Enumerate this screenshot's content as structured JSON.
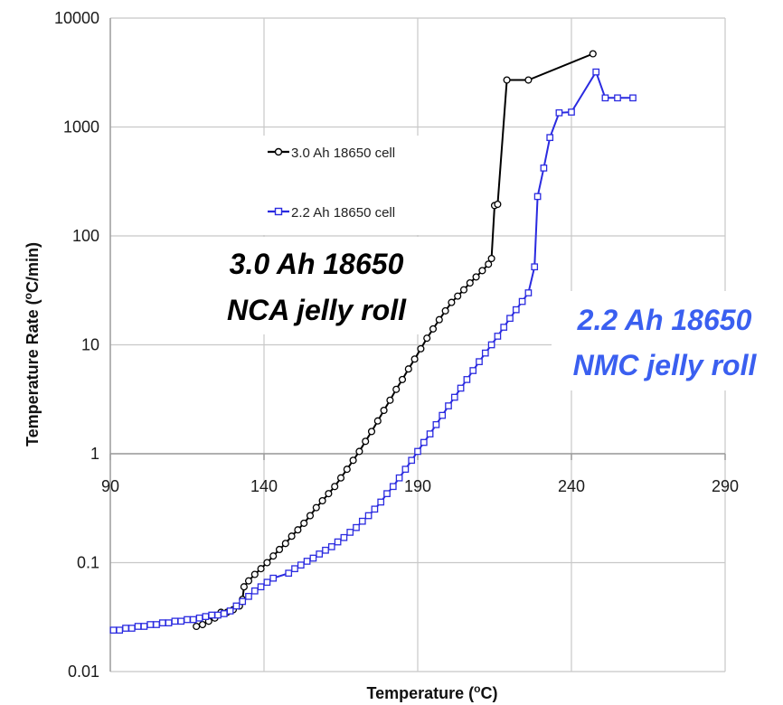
{
  "chart_data": {
    "type": "scatter",
    "xlabel": "Temperature (",
    "xlabel_sup": "o",
    "xlabel_end": "C)",
    "ylabel": "Temperature Rate (",
    "ylabel_sup": "o",
    "ylabel_end": "C/min)",
    "y_scale": "log",
    "xlim": [
      90,
      290
    ],
    "ylim": [
      0.01,
      10000
    ],
    "x_ticks": [
      "90",
      "140",
      "190",
      "240",
      "290"
    ],
    "y_ticks": [
      "0.01",
      "0.1",
      "1",
      "10",
      "100",
      "1000",
      "10000"
    ],
    "grid": true,
    "legend_placement": "upper-left-center",
    "series": [
      {
        "name": "3.0 Ah 18650 cell",
        "color": "#000000",
        "marker": "circle",
        "points": [
          [
            118,
            0.026
          ],
          [
            120,
            0.027
          ],
          [
            122,
            0.029
          ],
          [
            124,
            0.031
          ],
          [
            126,
            0.035
          ],
          [
            128,
            0.035
          ],
          [
            130,
            0.037
          ],
          [
            132,
            0.04
          ],
          [
            133,
            0.046
          ],
          [
            133.5,
            0.06
          ],
          [
            135,
            0.068
          ],
          [
            137,
            0.078
          ],
          [
            139,
            0.088
          ],
          [
            141,
            0.1
          ],
          [
            143,
            0.115
          ],
          [
            145,
            0.132
          ],
          [
            147,
            0.15
          ],
          [
            149,
            0.175
          ],
          [
            151,
            0.2
          ],
          [
            153,
            0.23
          ],
          [
            155,
            0.27
          ],
          [
            157,
            0.32
          ],
          [
            159,
            0.37
          ],
          [
            161,
            0.43
          ],
          [
            163,
            0.5
          ],
          [
            165,
            0.6
          ],
          [
            167,
            0.72
          ],
          [
            169,
            0.87
          ],
          [
            171,
            1.05
          ],
          [
            173,
            1.3
          ],
          [
            175,
            1.6
          ],
          [
            177,
            2.0
          ],
          [
            179,
            2.5
          ],
          [
            181,
            3.1
          ],
          [
            183,
            3.9
          ],
          [
            185,
            4.8
          ],
          [
            187,
            6.0
          ],
          [
            189,
            7.4
          ],
          [
            191,
            9.2
          ],
          [
            193,
            11.5
          ],
          [
            195,
            14.0
          ],
          [
            197,
            17.0
          ],
          [
            199,
            20.5
          ],
          [
            201,
            24.5
          ],
          [
            203,
            28.0
          ],
          [
            205,
            32.0
          ],
          [
            207,
            37.0
          ],
          [
            209,
            42.0
          ],
          [
            211,
            48.0
          ],
          [
            213,
            55.0
          ],
          [
            214,
            62.0
          ],
          [
            215,
            190
          ],
          [
            216,
            195
          ],
          [
            219,
            2700
          ],
          [
            226,
            2700
          ],
          [
            247,
            4700
          ]
        ]
      },
      {
        "name": "2.2 Ah 18650 cell",
        "color": "#2a2ae0",
        "marker": "square",
        "points": [
          [
            91,
            0.024
          ],
          [
            93,
            0.024
          ],
          [
            95,
            0.025
          ],
          [
            97,
            0.025
          ],
          [
            99,
            0.026
          ],
          [
            101,
            0.026
          ],
          [
            103,
            0.027
          ],
          [
            105,
            0.027
          ],
          [
            107,
            0.028
          ],
          [
            109,
            0.028
          ],
          [
            111,
            0.029
          ],
          [
            113,
            0.029
          ],
          [
            115,
            0.03
          ],
          [
            117,
            0.03
          ],
          [
            119,
            0.031
          ],
          [
            121,
            0.032
          ],
          [
            123,
            0.033
          ],
          [
            125,
            0.033
          ],
          [
            127,
            0.034
          ],
          [
            129,
            0.036
          ],
          [
            131,
            0.04
          ],
          [
            133,
            0.044
          ],
          [
            135,
            0.049
          ],
          [
            137,
            0.055
          ],
          [
            139,
            0.06
          ],
          [
            141,
            0.066
          ],
          [
            143,
            0.072
          ],
          [
            148,
            0.08
          ],
          [
            150,
            0.088
          ],
          [
            152,
            0.095
          ],
          [
            154,
            0.103
          ],
          [
            156,
            0.11
          ],
          [
            158,
            0.12
          ],
          [
            160,
            0.13
          ],
          [
            162,
            0.14
          ],
          [
            164,
            0.155
          ],
          [
            166,
            0.17
          ],
          [
            168,
            0.19
          ],
          [
            170,
            0.21
          ],
          [
            172,
            0.24
          ],
          [
            174,
            0.27
          ],
          [
            176,
            0.31
          ],
          [
            178,
            0.36
          ],
          [
            180,
            0.43
          ],
          [
            182,
            0.5
          ],
          [
            184,
            0.6
          ],
          [
            186,
            0.72
          ],
          [
            188,
            0.87
          ],
          [
            190,
            1.05
          ],
          [
            192,
            1.27
          ],
          [
            194,
            1.52
          ],
          [
            196,
            1.85
          ],
          [
            198,
            2.25
          ],
          [
            200,
            2.75
          ],
          [
            202,
            3.3
          ],
          [
            204,
            4.0
          ],
          [
            206,
            4.8
          ],
          [
            208,
            5.8
          ],
          [
            210,
            7.0
          ],
          [
            212,
            8.4
          ],
          [
            214,
            10.0
          ],
          [
            216,
            12.0
          ],
          [
            218,
            14.5
          ],
          [
            220,
            17.5
          ],
          [
            222,
            21.0
          ],
          [
            224,
            25.0
          ],
          [
            226,
            30.0
          ],
          [
            228,
            52
          ],
          [
            229,
            230
          ],
          [
            231,
            420
          ],
          [
            233,
            800
          ],
          [
            236,
            1350
          ],
          [
            240,
            1370
          ],
          [
            248,
            3200
          ],
          [
            251,
            1850
          ],
          [
            255,
            1850
          ],
          [
            260,
            1850
          ]
        ]
      }
    ],
    "annotations": [
      {
        "lines": [
          "3.0 Ah 18650",
          "NCA jelly roll"
        ],
        "color": "#000000"
      },
      {
        "lines": [
          "2.2 Ah 18650",
          "NMC jelly roll"
        ],
        "color": "#3a5ff0"
      }
    ]
  }
}
